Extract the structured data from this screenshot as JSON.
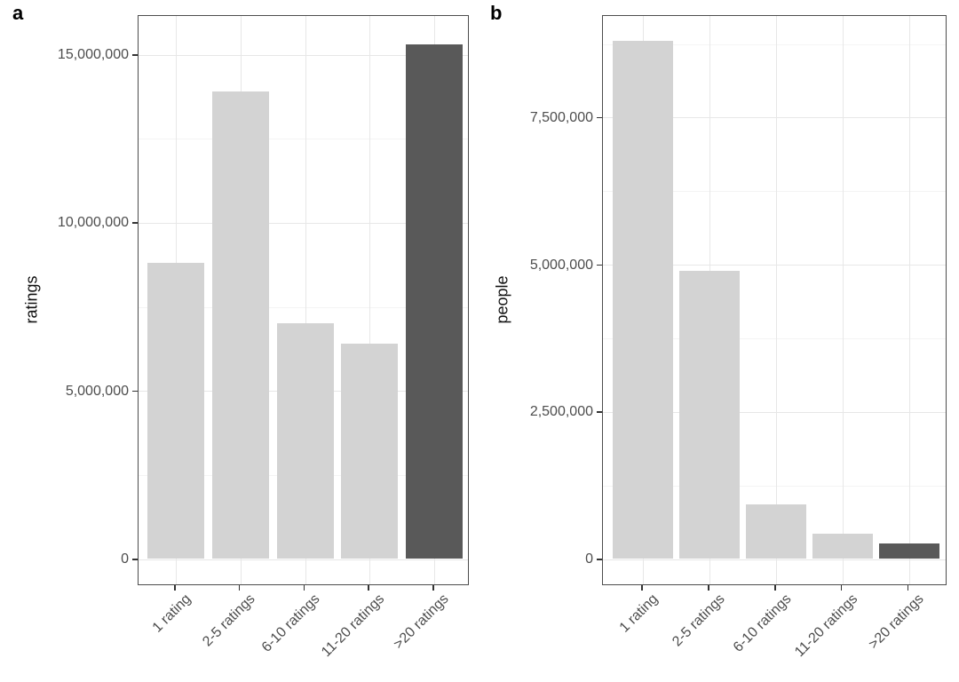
{
  "figure": {
    "background": "#ffffff",
    "description": "Two-panel bar chart figure"
  },
  "panels": [
    {
      "letter": "a",
      "ylabel": "ratings"
    },
    {
      "letter": "b",
      "ylabel": "people"
    }
  ],
  "colors": {
    "bar_light": "#d3d3d3",
    "bar_dark": "#595959",
    "panel_border": "#4d4d4d",
    "grid_major": "#e7e7e7",
    "grid_minor": "#f4f4f4",
    "tick_mark": "#333333",
    "axis_text": "#4d4d4d",
    "title_text": "#111111"
  },
  "chart_data": [
    {
      "type": "bar",
      "panel": "a",
      "title": "",
      "xlabel": "",
      "ylabel": "ratings",
      "categories": [
        "1 rating",
        "2-5 ratings",
        "6-10 ratings",
        "11-20 ratings",
        ">20 ratings"
      ],
      "values": [
        8800000,
        13900000,
        7000000,
        6400000,
        15300000
      ],
      "highlight_index": 4,
      "yticks": [
        0,
        5000000,
        10000000,
        15000000
      ],
      "ytick_labels": [
        "0",
        "5,000,000",
        "10,000,000",
        "15,000,000"
      ],
      "minor_yticks": [
        2500000,
        7500000,
        12500000
      ],
      "ylim": [
        0,
        16190000
      ],
      "grid": true,
      "legend": "none"
    },
    {
      "type": "bar",
      "panel": "b",
      "title": "",
      "xlabel": "",
      "ylabel": "people",
      "categories": [
        "1 rating",
        "2-5 ratings",
        "6-10 ratings",
        "11-20 ratings",
        ">20 ratings"
      ],
      "values": [
        8800000,
        4900000,
        930000,
        430000,
        270000
      ],
      "highlight_index": 4,
      "yticks": [
        0,
        2500000,
        5000000,
        7500000
      ],
      "ytick_labels": [
        "0",
        "2,500,000",
        "5,000,000",
        "7,500,000"
      ],
      "minor_yticks": [
        1250000,
        3750000,
        6250000,
        8750000
      ],
      "ylim": [
        0,
        9250000
      ],
      "grid": true,
      "legend": "none"
    }
  ]
}
